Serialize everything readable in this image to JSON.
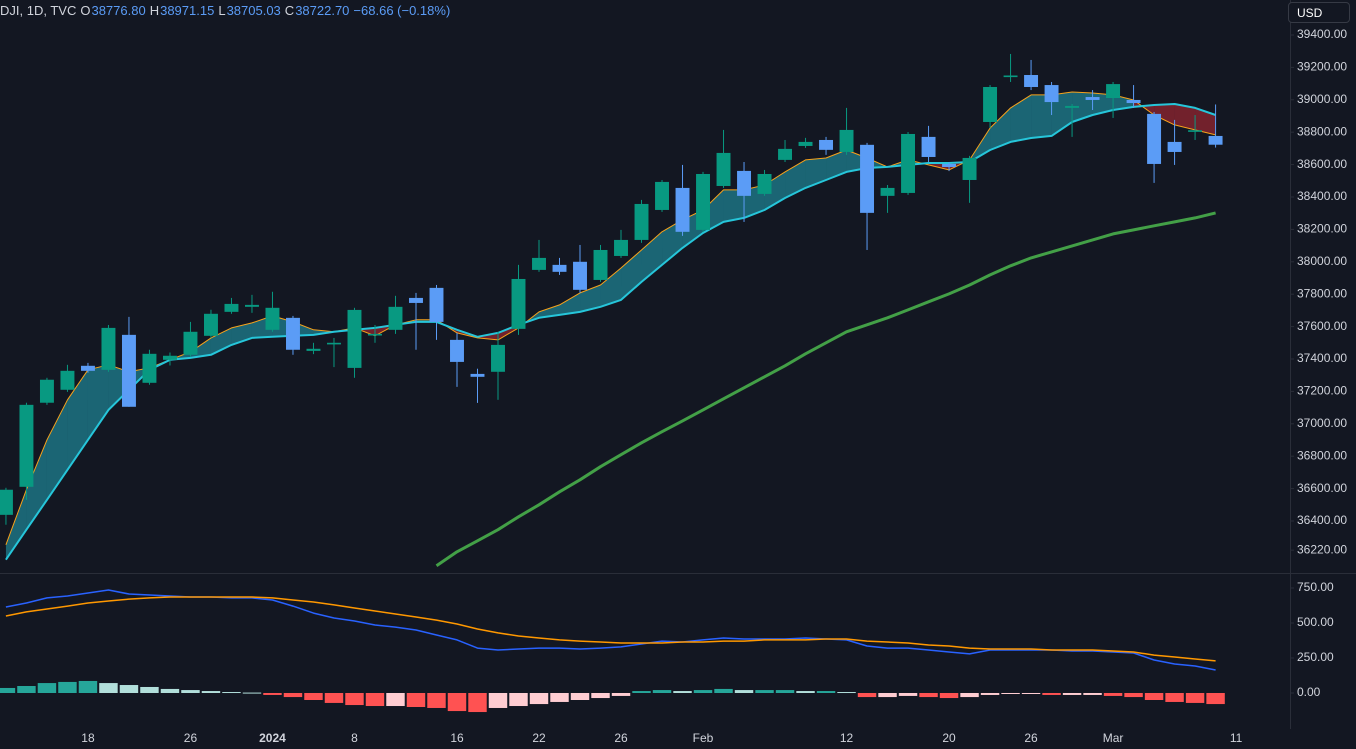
{
  "chart_data": [
    {
      "type": "candlestick",
      "legend": {
        "symbol": "DJI, 1D, TVC",
        "items": [
          {
            "label": "O",
            "value": "38776.80"
          },
          {
            "label": "H",
            "value": "38971.15"
          },
          {
            "label": "L",
            "value": "38705.03"
          },
          {
            "label": "C",
            "value": "38722.70"
          }
        ],
        "change": "−68.66 (−0.18%)"
      },
      "currency": "USD",
      "categories": [
        null,
        null,
        null,
        null,
        "18",
        null,
        null,
        null,
        null,
        "26",
        null,
        null,
        null,
        "2024",
        null,
        null,
        null,
        "8",
        null,
        null,
        null,
        null,
        "16",
        null,
        null,
        null,
        "22",
        null,
        null,
        null,
        "26",
        null,
        null,
        null,
        "Feb",
        null,
        null,
        null,
        null,
        null,
        null,
        "12",
        null,
        null,
        null,
        null,
        "20",
        null,
        null,
        null,
        "26",
        null,
        null,
        null,
        "Mar",
        null,
        null,
        null,
        null,
        null,
        "11"
      ],
      "open": [
        36438,
        36611,
        37130,
        37210,
        37358,
        37333,
        37549,
        37253,
        37395,
        37426,
        37543,
        37691,
        37722,
        37580,
        37654,
        37450,
        37490,
        37345,
        37545,
        37580,
        37777,
        37839,
        37518,
        37308,
        37321,
        37586,
        37950,
        37981,
        38000,
        37888,
        38036,
        38135,
        38320,
        38456,
        38197,
        38468,
        38561,
        38419,
        38629,
        38715,
        38752,
        38678,
        38722,
        38407,
        38425,
        38771,
        38604,
        38505,
        38863,
        39140,
        39153,
        39091,
        38950,
        39017,
        39011,
        38999,
        38913,
        38740,
        38802,
        38776.8,
        null
      ],
      "high": [
        36605,
        37130,
        37284,
        37364,
        37376,
        37610,
        37660,
        37457,
        37440,
        37629,
        37704,
        37777,
        37796,
        37815,
        37666,
        37500,
        37530,
        37716,
        37610,
        37790,
        37808,
        37857,
        37561,
        37340,
        37567,
        37981,
        38135,
        38024,
        38104,
        38104,
        38197,
        38382,
        38505,
        38598,
        38555,
        38814,
        38616,
        38567,
        38752,
        38765,
        38771,
        38950,
        38734,
        38474,
        38801,
        38839,
        38616,
        38654,
        39091,
        39283,
        39246,
        39110,
        38974,
        39060,
        39110,
        39091,
        38925,
        38876,
        38906,
        38971.15,
        null
      ],
      "low": [
        36377,
        36530,
        37117,
        37197,
        37315,
        37321,
        37105,
        37241,
        37360,
        37413,
        37530,
        37679,
        37685,
        37568,
        37426,
        37430,
        37350,
        37284,
        37500,
        37555,
        37457,
        37518,
        37228,
        37129,
        37148,
        37549,
        37938,
        37919,
        37808,
        37876,
        38024,
        38117,
        38308,
        38160,
        38185,
        38456,
        38246,
        38407,
        38616,
        38703,
        38660,
        38660,
        38073,
        38302,
        38413,
        38616,
        38560,
        38364,
        38826,
        39110,
        39060,
        38906,
        38771,
        38937,
        38888,
        38950,
        38487,
        38598,
        38752,
        38705.03,
        null
      ],
      "close": [
        36593,
        37117,
        37272,
        37327,
        37327,
        37592,
        37105,
        37432,
        37420,
        37568,
        37679,
        37740,
        37734,
        37716,
        37457,
        37463,
        37500,
        37703,
        37555,
        37722,
        37746,
        37629,
        37382,
        37290,
        37487,
        37894,
        38024,
        37938,
        37827,
        38073,
        38135,
        38357,
        38493,
        38185,
        38542,
        38672,
        38407,
        38542,
        38697,
        38740,
        38691,
        38814,
        38302,
        38456,
        38789,
        38647,
        38585,
        38641,
        39079,
        39150,
        39079,
        38986,
        38962,
        38999,
        39097,
        38980,
        38604,
        38678,
        38812,
        38722.7,
        null
      ],
      "up_color": "#089981",
      "down_color": "#5b9cf6",
      "lines": [
        {
          "color": "#f7a21b",
          "width": 1,
          "values": [
            36253,
            36593,
            36901,
            37148,
            37333,
            37364,
            37321,
            37345,
            37395,
            37444,
            37530,
            37592,
            37623,
            37666,
            37629,
            37580,
            37568,
            37592,
            37543,
            37611,
            37642,
            37642,
            37561,
            37530,
            37518,
            37592,
            37691,
            37734,
            37808,
            37857,
            37962,
            38073,
            38185,
            38259,
            38320,
            38444,
            38444,
            38474,
            38555,
            38629,
            38641,
            38690,
            38641,
            38586,
            38629,
            38598,
            38567,
            38629,
            38826,
            38950,
            39030,
            39030,
            39048,
            39042,
            39030,
            38999,
            38906,
            38845,
            38814,
            38783,
            null
          ]
        },
        {
          "color": "#26c6da",
          "width": 2,
          "values": [
            36161,
            36346,
            36531,
            36716,
            36901,
            37086,
            37210,
            37333,
            37395,
            37407,
            37426,
            37487,
            37530,
            37537,
            37543,
            37549,
            37568,
            37580,
            37592,
            37611,
            37629,
            37629,
            37580,
            37537,
            37561,
            37611,
            37654,
            37672,
            37691,
            37722,
            37765,
            37876,
            37981,
            38086,
            38178,
            38246,
            38271,
            38320,
            38394,
            38456,
            38505,
            38555,
            38579,
            38586,
            38598,
            38610,
            38610,
            38616,
            38690,
            38740,
            38764,
            38777,
            38863,
            38906,
            38937,
            38956,
            38968,
            38974,
            38950,
            38906,
            null
          ]
        },
        {
          "color": "#43a047",
          "width": 3,
          "values": [
            null,
            null,
            null,
            null,
            null,
            null,
            null,
            null,
            null,
            null,
            null,
            null,
            null,
            null,
            null,
            null,
            null,
            null,
            null,
            null,
            null,
            36124,
            36210,
            36278,
            36346,
            36426,
            36500,
            36580,
            36654,
            36735,
            36809,
            36883,
            36951,
            37018,
            37086,
            37154,
            37222,
            37290,
            37358,
            37432,
            37500,
            37568,
            37611,
            37654,
            37703,
            37753,
            37802,
            37857,
            37919,
            37975,
            38024,
            38061,
            38098,
            38135,
            38172,
            38197,
            38222,
            38246,
            38271,
            38302,
            null
          ]
        }
      ],
      "fill_colors": [
        "rgba(38,198,218,0.45)",
        "rgba(178,40,51,0.6)"
      ],
      "xlim": [
        -0.29,
        62.63
      ],
      "ylim": [
        36079,
        39616
      ],
      "yticks": [
        {
          "value": 36220,
          "label": "36220.00"
        },
        {
          "value": 36400,
          "label": "36400.00"
        },
        {
          "value": 36600,
          "label": "36600.00"
        },
        {
          "value": 36800,
          "label": "36800.00"
        },
        {
          "value": 37000,
          "label": "37000.00"
        },
        {
          "value": 37200,
          "label": "37200.00"
        },
        {
          "value": 37400,
          "label": "37400.00"
        },
        {
          "value": 37600,
          "label": "37600.00"
        },
        {
          "value": 37800,
          "label": "37800.00"
        },
        {
          "value": 38000,
          "label": "38000.00"
        },
        {
          "value": 38200,
          "label": "38200.00"
        },
        {
          "value": 38400,
          "label": "38400.00"
        },
        {
          "value": 38600,
          "label": "38600.00"
        },
        {
          "value": 38800,
          "label": "38800.00"
        },
        {
          "value": 39000,
          "label": "39000.00"
        },
        {
          "value": 39200,
          "label": "39200.00"
        },
        {
          "value": 39400,
          "label": "39400.00"
        }
      ],
      "grid": false
    },
    {
      "type": "macd",
      "lines": [
        {
          "color": "#2962ff",
          "values": [
            614,
            643,
            679,
            693,
            714,
            736,
            707,
            700,
            693,
            686,
            686,
            679,
            679,
            664,
            621,
            571,
            536,
            514,
            486,
            471,
            450,
            414,
            379,
            321,
            307,
            314,
            321,
            321,
            314,
            321,
            329,
            350,
            371,
            364,
            379,
            393,
            386,
            386,
            386,
            393,
            386,
            379,
            336,
            321,
            321,
            307,
            293,
            279,
            307,
            307,
            307,
            307,
            300,
            300,
            293,
            286,
            236,
            207,
            193,
            164
          ]
        },
        {
          "color": "#ff9800",
          "values": [
            550,
            579,
            600,
            621,
            643,
            657,
            671,
            679,
            686,
            686,
            686,
            686,
            686,
            679,
            664,
            650,
            629,
            607,
            586,
            564,
            543,
            521,
            493,
            457,
            429,
            407,
            393,
            379,
            371,
            364,
            357,
            357,
            357,
            364,
            364,
            371,
            371,
            379,
            379,
            379,
            386,
            386,
            371,
            364,
            357,
            343,
            336,
            321,
            314,
            314,
            314,
            307,
            307,
            307,
            300,
            293,
            271,
            257,
            243,
            229
          ]
        }
      ],
      "histogram": {
        "values": [
          36,
          50,
          71,
          79,
          86,
          71,
          57,
          43,
          29,
          21,
          14,
          7,
          3,
          -14,
          -29,
          -50,
          -71,
          -86,
          -93,
          -93,
          -100,
          -107,
          -129,
          -136,
          -107,
          -93,
          -79,
          -64,
          -50,
          -36,
          -21,
          14,
          21,
          14,
          21,
          29,
          21,
          21,
          21,
          14,
          14,
          7,
          -29,
          -29,
          -21,
          -29,
          -36,
          -29,
          -14,
          -7,
          -7,
          -14,
          -14,
          -14,
          -21,
          -29,
          -50,
          -64,
          -71,
          -79
        ],
        "colors": {
          "positive_rising": "#26a69a",
          "positive_falling": "#b2dfdb",
          "negative_falling": "#ff5252",
          "negative_rising": "#ffcdd2"
        }
      },
      "ylim": [
        -250,
        850
      ],
      "yticks": [
        {
          "value": 0,
          "label": "0.00"
        },
        {
          "value": 250,
          "label": "250.00"
        },
        {
          "value": 500,
          "label": "500.00"
        },
        {
          "value": 750,
          "label": "750.00"
        }
      ],
      "grid": false
    }
  ]
}
